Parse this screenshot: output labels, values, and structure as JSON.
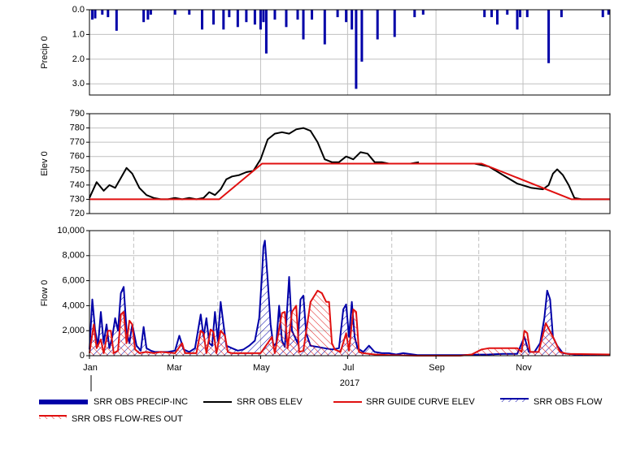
{
  "chart_data": [
    {
      "type": "bar",
      "ylabel": "Precip 0",
      "y_inverted": true,
      "ylim": [
        0,
        3.45
      ],
      "yticks": [
        {
          "value": 0,
          "label": "0.0"
        },
        {
          "value": 1,
          "label": "1.0"
        },
        {
          "value": 2,
          "label": "2.0"
        },
        {
          "value": 3,
          "label": "3.0"
        }
      ],
      "series": [
        {
          "name": "SRR OBS PRECIP-INC",
          "color": "#0000a8",
          "x": [
            2,
            4,
            9,
            13,
            19,
            38,
            41,
            43,
            60,
            70,
            79,
            87,
            94,
            98,
            104,
            110,
            116,
            120,
            122,
            124,
            130,
            138,
            146,
            150,
            156,
            165,
            174,
            180,
            184,
            187,
            191,
            202,
            214,
            228,
            234,
            277,
            282,
            286,
            293,
            300,
            302,
            307,
            322,
            331,
            360,
            364
          ],
          "values": [
            0.4,
            0.35,
            0.2,
            0.3,
            0.85,
            0.5,
            0.4,
            0.2,
            0.2,
            0.2,
            0.8,
            0.6,
            0.8,
            0.3,
            0.7,
            0.5,
            0.6,
            0.8,
            0.5,
            1.77,
            0.4,
            0.7,
            0.4,
            1.2,
            0.4,
            1.4,
            0.3,
            0.5,
            0.8,
            3.2,
            2.1,
            1.2,
            1.1,
            0.3,
            0.2,
            0.3,
            0.3,
            0.6,
            0.2,
            0.8,
            0.3,
            0.3,
            2.16,
            0.3,
            0.3,
            0.2
          ]
        }
      ]
    },
    {
      "type": "line",
      "ylabel": "Elev 0",
      "ylim": [
        720,
        790
      ],
      "yticks": [
        720,
        730,
        740,
        750,
        760,
        770,
        780,
        790
      ],
      "series": [
        {
          "name": "SRR OBS ELEV",
          "color": "#000000",
          "x": [
            0,
            5,
            10,
            14,
            18,
            22,
            26,
            30,
            35,
            40,
            45,
            50,
            55,
            60,
            65,
            70,
            75,
            80,
            84,
            88,
            92,
            96,
            100,
            105,
            110,
            115,
            120,
            125,
            130,
            135,
            140,
            145,
            150,
            155,
            160,
            165,
            170,
            175,
            180,
            185,
            190,
            195,
            200,
            205,
            210,
            215,
            220,
            225,
            231,
            250,
            270,
            280,
            290,
            300,
            310,
            318,
            322,
            325,
            328,
            332,
            336,
            340,
            345,
            355,
            365
          ],
          "values": [
            731,
            742,
            736,
            740,
            738,
            745,
            752,
            748,
            738,
            733,
            731,
            730,
            730,
            731,
            730,
            731,
            730,
            731,
            735,
            733,
            737,
            744,
            746,
            747,
            749,
            750,
            758,
            772,
            776,
            777,
            776,
            779,
            780,
            778,
            770,
            758,
            756,
            756,
            760,
            758,
            763,
            762,
            756,
            756,
            755,
            755,
            755,
            755,
            756,
            null,
            755,
            753,
            747,
            741,
            738,
            737,
            740,
            748,
            751,
            747,
            740,
            731,
            730,
            730,
            730
          ]
        },
        {
          "name": "SRR GUIDE CURVE ELEV",
          "color": "#e01010",
          "x": [
            0,
            91,
            121,
            275,
            338,
            365
          ],
          "values": [
            730,
            730,
            755,
            755,
            730,
            730
          ]
        }
      ]
    },
    {
      "type": "area",
      "ylabel": "Flow 0",
      "ylim": [
        0,
        10000
      ],
      "yticks": [
        0,
        {
          "value": 2000,
          "label": "2,000"
        },
        {
          "value": 4000,
          "label": "4,000"
        },
        {
          "value": 6000,
          "label": "6,000"
        },
        {
          "value": 8000,
          "label": "8,000"
        },
        {
          "value": 10000,
          "label": "10,000"
        }
      ],
      "xlim": [
        0,
        365
      ],
      "xticks": [
        {
          "value": 0,
          "label": "Jan"
        },
        {
          "value": 59,
          "label": "Mar"
        },
        {
          "value": 120,
          "label": "May"
        },
        {
          "value": 181,
          "label": "Jul"
        },
        {
          "value": 243,
          "label": "Sep"
        },
        {
          "value": 304,
          "label": "Nov"
        }
      ],
      "xminorticks": [
        31,
        90,
        151,
        212,
        273,
        334
      ],
      "xlabel": "2017",
      "series": [
        {
          "name": "SRR OBS FLOW",
          "color": "#0000a8",
          "x": [
            0,
            2,
            4,
            6,
            8,
            10,
            12,
            14,
            16,
            18,
            20,
            22,
            24,
            26,
            28,
            30,
            33,
            36,
            38,
            40,
            43,
            46,
            50,
            55,
            60,
            63,
            66,
            70,
            74,
            78,
            80,
            82,
            84,
            86,
            88,
            90,
            92,
            94,
            96,
            100,
            104,
            108,
            112,
            116,
            119,
            121,
            122,
            123,
            125,
            127,
            129,
            131,
            133,
            135,
            137,
            140,
            142,
            144,
            146,
            148,
            150,
            152,
            155,
            160,
            165,
            170,
            175,
            178,
            180,
            182,
            184,
            186,
            188,
            192,
            196,
            200,
            205,
            210,
            215,
            220,
            230,
            240,
            250,
            260,
            270,
            280,
            290,
            300,
            305,
            308,
            312,
            316,
            319,
            321,
            323,
            325,
            328,
            332,
            340,
            350,
            365
          ],
          "values": [
            500,
            4500,
            2000,
            800,
            3500,
            1000,
            2500,
            600,
            1500,
            3000,
            2000,
            5000,
            5500,
            2000,
            1000,
            2500,
            800,
            400,
            2300,
            600,
            400,
            300,
            300,
            300,
            400,
            1600,
            500,
            300,
            600,
            3300,
            1500,
            3000,
            1000,
            800,
            3500,
            1200,
            4300,
            2500,
            800,
            600,
            400,
            500,
            800,
            1200,
            3000,
            6500,
            8700,
            9200,
            6000,
            2500,
            800,
            1000,
            4000,
            1200,
            700,
            6300,
            2000,
            1500,
            1000,
            4500,
            4800,
            1800,
            800,
            700,
            600,
            500,
            600,
            3700,
            4100,
            1500,
            4300,
            1500,
            600,
            300,
            800,
            300,
            200,
            200,
            100,
            200,
            50,
            50,
            50,
            50,
            80,
            100,
            150,
            150,
            1500,
            300,
            300,
            1000,
            3000,
            5200,
            4500,
            1500,
            800,
            200,
            100,
            100,
            100
          ]
        },
        {
          "name": "SRR OBS FLOW-RES OUT",
          "color": "#e01010",
          "x": [
            0,
            3,
            5,
            8,
            10,
            13,
            15,
            17,
            20,
            22,
            24,
            26,
            28,
            30,
            32,
            35,
            40,
            45,
            50,
            60,
            65,
            67,
            75,
            78,
            80,
            82,
            85,
            87,
            89,
            92,
            95,
            97,
            100,
            110,
            115,
            120,
            125,
            128,
            130,
            135,
            137,
            139,
            142,
            145,
            147,
            150,
            155,
            160,
            163,
            166,
            168,
            170,
            172,
            176,
            180,
            182,
            185,
            187,
            189,
            192,
            200,
            210,
            230,
            260,
            268,
            275,
            280,
            300,
            303,
            305,
            307,
            309,
            315,
            320,
            325,
            330,
            335,
            365
          ],
          "values": [
            200,
            2500,
            600,
            1300,
            200,
            2000,
            2000,
            200,
            400,
            3300,
            3500,
            1000,
            2800,
            2500,
            500,
            200,
            300,
            200,
            300,
            200,
            1000,
            200,
            200,
            2000,
            1800,
            200,
            2100,
            1900,
            200,
            2000,
            1600,
            300,
            200,
            200,
            200,
            200,
            1000,
            1500,
            200,
            3400,
            3500,
            600,
            3500,
            4000,
            300,
            400,
            4300,
            5200,
            5000,
            4300,
            4300,
            1000,
            500,
            300,
            1800,
            400,
            3700,
            3500,
            300,
            200,
            100,
            50,
            0,
            0,
            100,
            500,
            600,
            600,
            300,
            2000,
            1800,
            300,
            300,
            2600,
            1500,
            300,
            150,
            100
          ]
        }
      ]
    }
  ]
}
